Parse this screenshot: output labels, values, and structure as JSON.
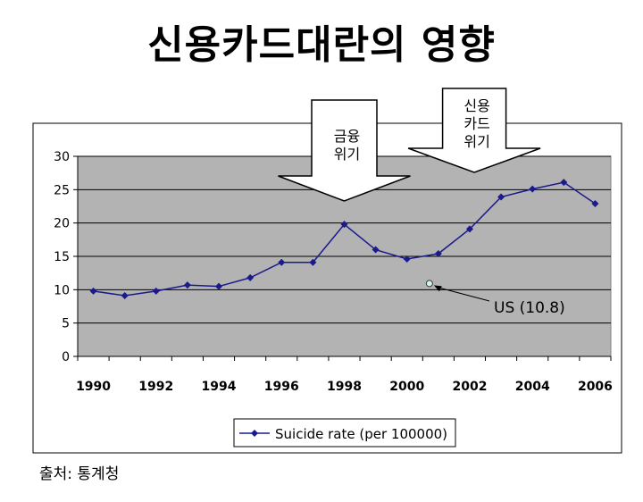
{
  "page": {
    "title": "신용카드대란의 영향",
    "source": "출처: 통계청"
  },
  "chart_data": {
    "type": "line",
    "x": [
      1990,
      1991,
      1992,
      1993,
      1994,
      1995,
      1996,
      1997,
      1998,
      1999,
      2000,
      2001,
      2002,
      2003,
      2004,
      2005,
      2006
    ],
    "series": [
      {
        "name": "Suicide rate (per 100000)",
        "values": [
          9.8,
          9.1,
          9.8,
          10.7,
          10.5,
          11.8,
          14.1,
          14.1,
          19.8,
          16.0,
          14.6,
          15.4,
          19.1,
          23.9,
          25.1,
          26.1,
          22.9
        ],
        "color": "#1a1a8c"
      }
    ],
    "x_tick_labels": [
      "1990",
      "1992",
      "1994",
      "1996",
      "1998",
      "2000",
      "2002",
      "2004",
      "2006"
    ],
    "y_ticks": [
      0,
      5,
      10,
      15,
      20,
      25,
      30
    ],
    "ylim": [
      0,
      30
    ],
    "grid": true,
    "plot_background": "#b3b3b3",
    "legend_position": "bottom",
    "annotations": [
      {
        "id": "financial-crisis",
        "label_lines": [
          "금융",
          "위기"
        ],
        "x": 1998
      },
      {
        "id": "credit-card-crisis",
        "label_lines": [
          "신용",
          "카드",
          "위기"
        ],
        "x": 2003
      }
    ],
    "reference_point": {
      "label": "US (10.8)",
      "x": 2001,
      "value": 10.8
    }
  }
}
